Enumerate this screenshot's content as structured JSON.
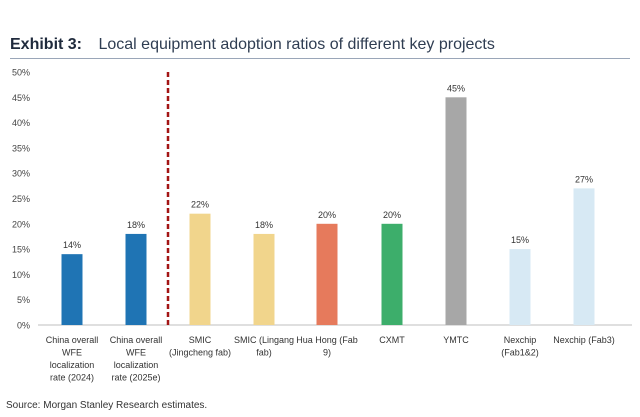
{
  "header": {
    "exhibit": "Exhibit 3:",
    "title": "Local equipment adoption ratios of different key projects"
  },
  "footer": {
    "source": "Source: Morgan Stanley Research estimates."
  },
  "chart_data": {
    "type": "bar",
    "title": "Local equipment adoption ratios of different key projects",
    "xlabel": "",
    "ylabel": "",
    "ylim": [
      0,
      50
    ],
    "yticks": [
      "0%",
      "5%",
      "10%",
      "15%",
      "20%",
      "25%",
      "30%",
      "35%",
      "40%",
      "45%",
      "50%"
    ],
    "grid": false,
    "categories": [
      [
        "China overall",
        "WFE",
        "localization",
        "rate (2024)"
      ],
      [
        "China overall",
        "WFE",
        "localization",
        "rate (2025e)"
      ],
      [
        "SMIC",
        "(Jingcheng fab)"
      ],
      [
        "SMIC (Lingang",
        "fab)"
      ],
      [
        "Hua Hong (Fab",
        "9)"
      ],
      [
        "CXMT"
      ],
      [
        "YMTC"
      ],
      [
        "Nexchip",
        "(Fab1&2)"
      ],
      [
        "Nexchip (Fab3)"
      ]
    ],
    "values": [
      14,
      18,
      22,
      18,
      20,
      20,
      45,
      15,
      27
    ],
    "labels": [
      "14%",
      "18%",
      "22%",
      "18%",
      "20%",
      "20%",
      "45%",
      "15%",
      "27%"
    ],
    "colors": [
      "#1f74b4",
      "#1f74b4",
      "#f1d58c",
      "#f1d58c",
      "#e67a5c",
      "#3dae6b",
      "#a7a7a7",
      "#d7e9f4",
      "#d7e9f4"
    ],
    "separator_after_index": 1,
    "separator_color": "#a31515"
  }
}
